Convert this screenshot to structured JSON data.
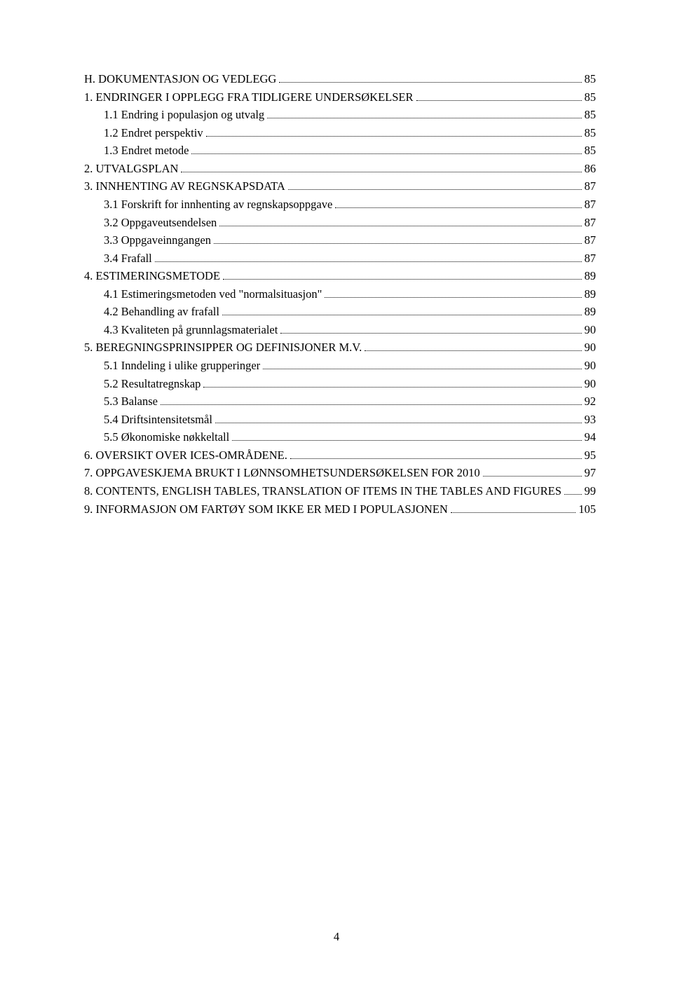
{
  "colors": {
    "bg": "#ffffff",
    "text": "#000000"
  },
  "typography": {
    "font_family": "Times New Roman",
    "font_size_pt": 12,
    "line_height": 1.55
  },
  "page_number": "4",
  "toc": [
    {
      "level": 0,
      "label": "H. DOKUMENTASJON OG VEDLEGG",
      "page": "85"
    },
    {
      "level": 0,
      "label": "1. ENDRINGER I OPPLEGG FRA TIDLIGERE UNDERSØKELSER",
      "page": "85"
    },
    {
      "level": 1,
      "label": "1.1 Endring i populasjon og utvalg",
      "page": "85"
    },
    {
      "level": 1,
      "label": "1.2 Endret perspektiv",
      "page": "85"
    },
    {
      "level": 1,
      "label": "1.3 Endret metode",
      "page": "85"
    },
    {
      "level": 0,
      "label": "2. UTVALGSPLAN",
      "page": "86"
    },
    {
      "level": 0,
      "label": "3. INNHENTING AV REGNSKAPSDATA",
      "page": "87"
    },
    {
      "level": 1,
      "label": "3.1 Forskrift for innhenting av regnskapsoppgave",
      "page": "87"
    },
    {
      "level": 1,
      "label": "3.2 Oppgaveutsendelsen",
      "page": "87"
    },
    {
      "level": 1,
      "label": "3.3 Oppgaveinngangen",
      "page": "87"
    },
    {
      "level": 1,
      "label": "3.4 Frafall",
      "page": "87"
    },
    {
      "level": 0,
      "label": "4. ESTIMERINGSMETODE",
      "page": "89"
    },
    {
      "level": 1,
      "label": "4.1 Estimeringsmetoden ved \"normalsituasjon\"",
      "page": "89"
    },
    {
      "level": 1,
      "label": "4.2 Behandling av frafall",
      "page": "89"
    },
    {
      "level": 1,
      "label": "4.3 Kvaliteten på grunnlagsmaterialet",
      "page": "90"
    },
    {
      "level": 0,
      "label": "5. BEREGNINGSPRINSIPPER OG DEFINISJONER M.V.",
      "page": "90"
    },
    {
      "level": 1,
      "label": "5.1 Inndeling i ulike grupperinger",
      "page": "90"
    },
    {
      "level": 1,
      "label": "5.2 Resultatregnskap",
      "page": "90"
    },
    {
      "level": 1,
      "label": "5.3 Balanse",
      "page": "92"
    },
    {
      "level": 1,
      "label": "5.4 Driftsintensitetsmål",
      "page": "93"
    },
    {
      "level": 1,
      "label": "5.5 Økonomiske nøkkeltall",
      "page": "94"
    },
    {
      "level": 0,
      "label": "6. OVERSIKT OVER ICES-OMRÅDENE.",
      "page": "95"
    },
    {
      "level": 0,
      "label": "7. OPPGAVESKJEMA BRUKT I LØNNSOMHETSUNDERSØKELSEN FOR 2010",
      "page": "97"
    },
    {
      "level": 0,
      "label": "8. CONTENTS, ENGLISH TABLES, TRANSLATION OF ITEMS IN THE TABLES AND FIGURES",
      "page": "99"
    },
    {
      "level": 0,
      "label": "9. INFORMASJON OM FARTØY SOM IKKE ER MED I POPULASJONEN",
      "page": "105"
    }
  ]
}
